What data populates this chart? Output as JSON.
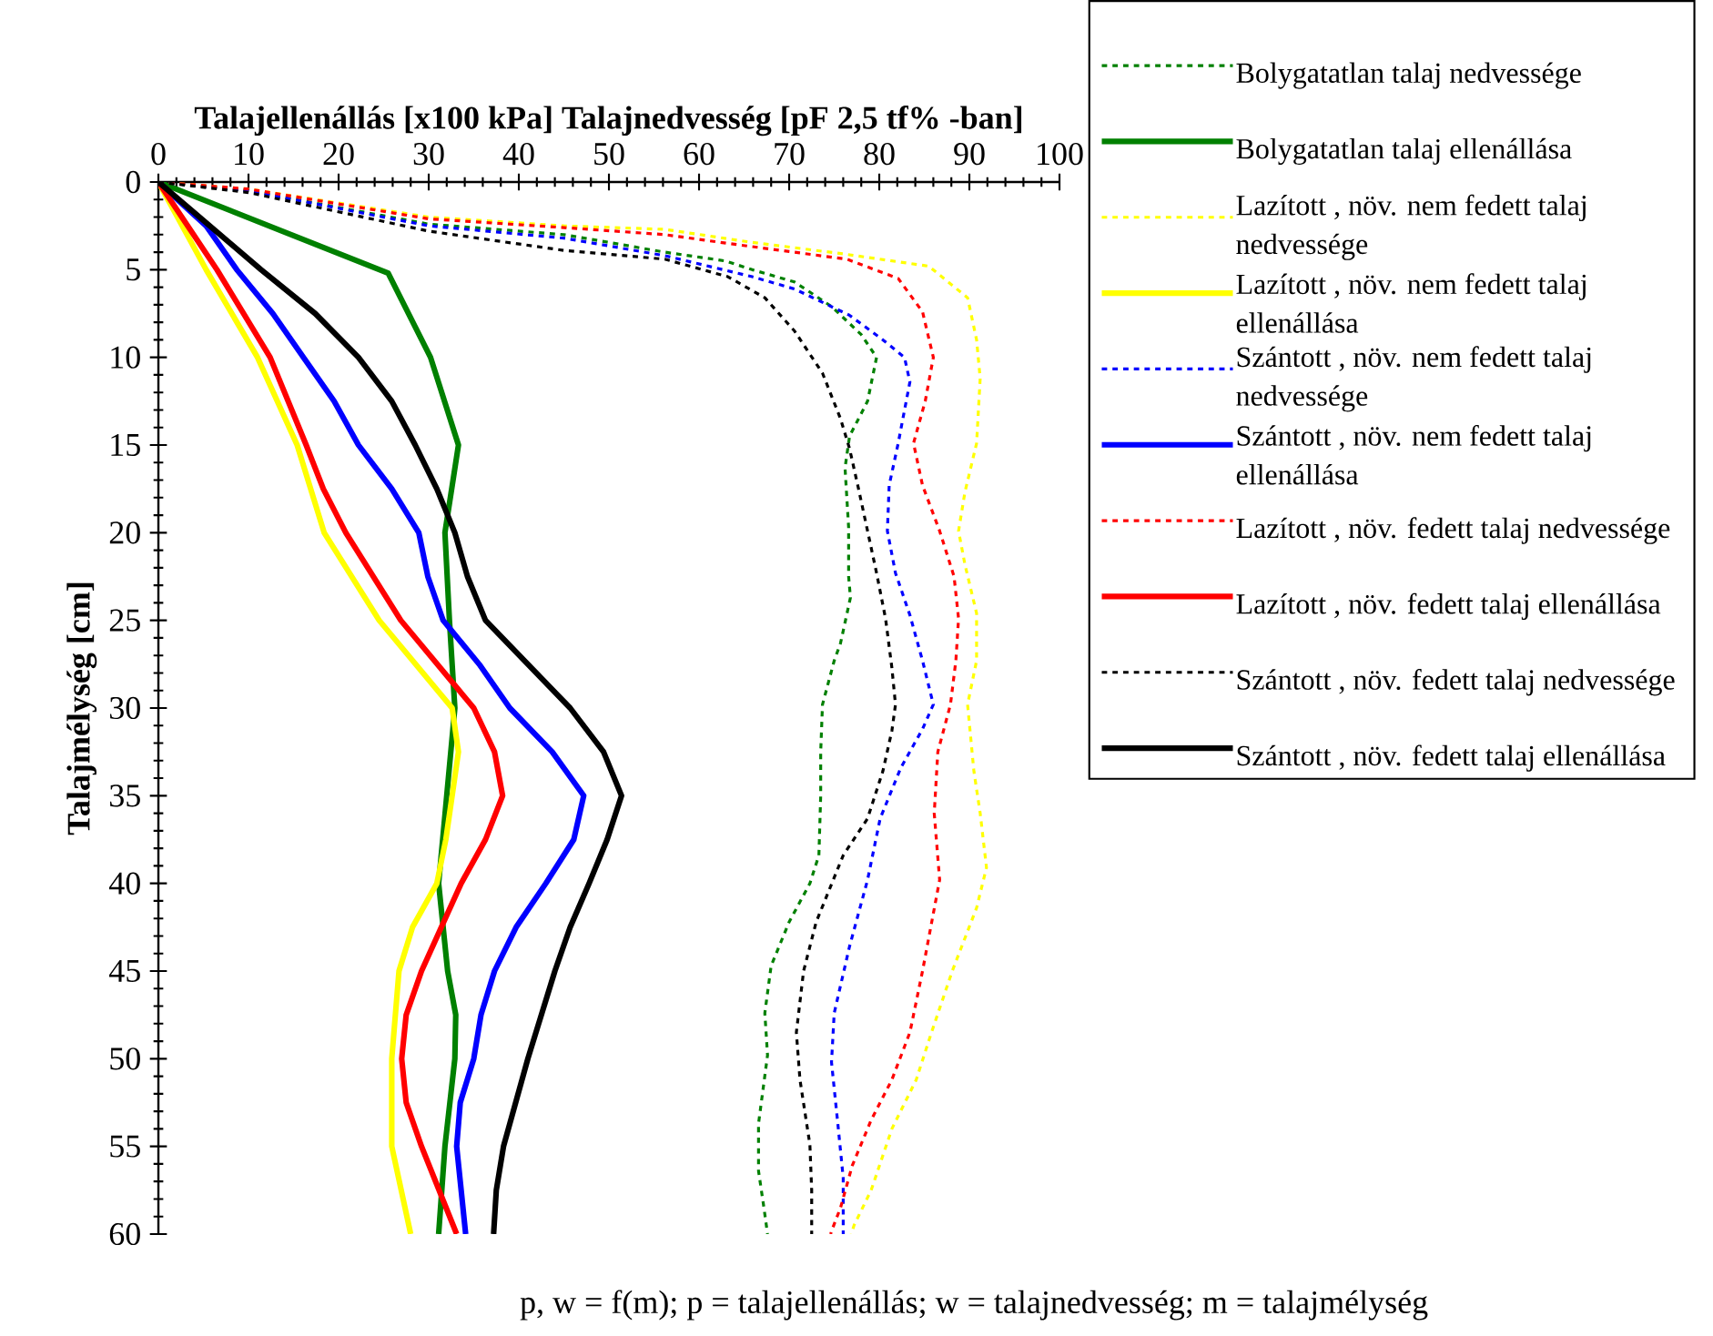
{
  "chart_data": {
    "type": "line",
    "xlabel": "Talajellenállás [x100 kPa] Talajnedvesség [pF 2,5 tf% -ban]",
    "ylabel": "Talajmélység [cm]",
    "annotations": [
      "p, w = f(m); p = talajellenállás; w = talajnedvesség; m = talajmélység"
    ],
    "xlim": [
      0,
      100
    ],
    "xticks": [
      0,
      10,
      20,
      30,
      40,
      50,
      60,
      70,
      80,
      90,
      100
    ],
    "ylim": [
      60,
      0
    ],
    "yticks": [
      0,
      5,
      10,
      15,
      20,
      25,
      30,
      35,
      40,
      45,
      50,
      55,
      60
    ],
    "legend": "right",
    "series": [
      {
        "name": "Bolygatatlan talaj nedvessége",
        "color": "#008000",
        "line_style": "dotted",
        "x": [
          0,
          10,
          30,
          45,
          56.2,
          62.9,
          65.9,
          70.6,
          74.7,
          78.0,
          79.7,
          78.7,
          76.7,
          76.2,
          76.6,
          76.6,
          76.8,
          75.7,
          75.0,
          73.7,
          73.5,
          73.5,
          73.3,
          72.3,
          70.0,
          68.0,
          67.3,
          67.6,
          66.6,
          66.6,
          67.2,
          67.6
        ],
        "values": [
          0,
          0.5,
          2.4,
          3.0,
          4.0,
          4.5,
          5.0,
          5.7,
          7.1,
          8.7,
          10.0,
          12.5,
          14.5,
          16.3,
          19.7,
          22.5,
          23.7,
          26.3,
          27.3,
          29.8,
          32.5,
          35.0,
          38.4,
          40.0,
          42.2,
          44.7,
          47.4,
          49.8,
          53.7,
          56.4,
          58.5,
          60
        ]
      },
      {
        "name": "Bolygatatlan talaj ellenállása",
        "color": "#008000",
        "line_style": "solid",
        "x": [
          0,
          25.5,
          30.2,
          33.3,
          31.8,
          32.3,
          32.9,
          32.0,
          31.1,
          32.1,
          33.0,
          32.9,
          31.8,
          31.1
        ],
        "values": [
          0,
          5.2,
          10,
          15,
          20,
          25,
          30,
          35,
          40,
          45,
          47.5,
          50,
          55,
          60
        ]
      },
      {
        "name": "Lazított , növ. nem fedett talaj nedvessége",
        "color": "#ffff00",
        "line_style": "dotted",
        "x": [
          0,
          10,
          30,
          45,
          56.2,
          65.3,
          76.0,
          85.5,
          89.8,
          90.8,
          91.2,
          90.8,
          89.5,
          88.8,
          89.5,
          90.8,
          90.8,
          89.8,
          90.5,
          91.2,
          91.9,
          90.8,
          88.1,
          85.8,
          84.1,
          81.4,
          79.1,
          77.2,
          76.9
        ],
        "values": [
          0,
          0.4,
          2.0,
          2.5,
          2.7,
          3.4,
          4.1,
          4.8,
          6.6,
          9.0,
          11.2,
          14.9,
          17.7,
          19.9,
          21.8,
          24.6,
          27.3,
          29.8,
          33.6,
          36.0,
          39.1,
          41.4,
          45.0,
          48.5,
          51.2,
          54.0,
          57.5,
          59.5,
          60
        ]
      },
      {
        "name": "Lazított , növ. nem fedett talaj ellenállása",
        "color": "#ffff00",
        "line_style": "solid",
        "x": [
          0,
          5.3,
          11.0,
          15.4,
          18.4,
          24.5,
          32.6,
          33.3,
          32.6,
          31.9,
          30.9,
          28.2,
          26.7,
          25.9,
          25.9,
          28.0
        ],
        "values": [
          0,
          5,
          10,
          15,
          20,
          25,
          30,
          32.5,
          35,
          37.5,
          40,
          42.5,
          45,
          50,
          55,
          60
        ]
      },
      {
        "name": "Szántott , növ. nem fedett talaj nedvessége",
        "color": "#0000ff",
        "line_style": "dotted",
        "x": [
          0,
          10,
          30,
          45,
          56.2,
          65.9,
          70.6,
          76.7,
          80.4,
          82.8,
          83.4,
          82.1,
          81.1,
          80.9,
          81.8,
          83.4,
          84.8,
          86.0,
          84.8,
          82.4,
          80.1,
          78.7,
          76.7,
          75.0,
          74.7,
          75.4,
          76.0,
          76.0
        ],
        "values": [
          0,
          0.5,
          2.5,
          3.2,
          4.2,
          5.4,
          6.1,
          7.6,
          9.0,
          10.0,
          11.4,
          14.9,
          17.3,
          19.9,
          22.3,
          24.7,
          27.3,
          29.8,
          31.2,
          33.4,
          36.3,
          39.8,
          43.6,
          47.4,
          50.2,
          53.7,
          56.8,
          60
        ]
      },
      {
        "name": "Szántott , növ. nem fedett talaj ellenállása",
        "color": "#0000ff",
        "line_style": "solid",
        "x": [
          0,
          5.3,
          8.7,
          12.7,
          16.1,
          19.5,
          22.2,
          25.9,
          28.9,
          29.9,
          31.6,
          35.6,
          39.0,
          43.7,
          47.2,
          46.1,
          43.0,
          39.7,
          37.3,
          35.8,
          35.0,
          33.5,
          33.1,
          34.1
        ],
        "values": [
          0,
          2.5,
          5,
          7.5,
          10,
          12.5,
          15,
          17.5,
          20,
          22.5,
          25,
          27.5,
          30,
          32.5,
          35,
          37.5,
          40,
          42.5,
          45,
          47.5,
          50,
          52.5,
          55,
          60
        ]
      },
      {
        "name": "Lazított , növ. fedett talaj nedvessége",
        "color": "#ff0000",
        "line_style": "dotted",
        "x": [
          0,
          10,
          30,
          45,
          56.2,
          63.2,
          76.4,
          82.1,
          84.8,
          86.0,
          85.1,
          83.8,
          84.8,
          86.7,
          88.3,
          88.8,
          88.5,
          87.9,
          86.5,
          86.1,
          86.7,
          84.8,
          83.4,
          81.4,
          79.1,
          77.0,
          75.7,
          74.8,
          74.6
        ],
        "values": [
          0,
          0.4,
          2.1,
          2.6,
          3.0,
          3.5,
          4.4,
          5.5,
          7.4,
          10.0,
          12.5,
          14.9,
          17.3,
          19.9,
          22.5,
          24.9,
          27.3,
          29.8,
          32.5,
          36.0,
          39.8,
          45.0,
          48.5,
          51.2,
          53.5,
          56.1,
          58.5,
          59.7,
          60
        ]
      },
      {
        "name": "Lazított , növ. fedett talaj ellenállása",
        "color": "#ff0000",
        "line_style": "solid",
        "x": [
          0,
          6.5,
          12.4,
          16.4,
          18.3,
          20.8,
          26.9,
          35.0,
          37.3,
          38.2,
          36.3,
          33.6,
          31.4,
          29.2,
          27.5,
          27.0,
          27.5,
          29.2,
          33.1
        ],
        "values": [
          0,
          5,
          10,
          15,
          17.5,
          20,
          25,
          30,
          32.5,
          35,
          37.5,
          40,
          42.5,
          45,
          47.5,
          50,
          52.5,
          55,
          60
        ]
      },
      {
        "name": "Szántott , növ. fedett talaj nedvessége",
        "color": "#000000",
        "line_style": "dotted",
        "x": [
          0,
          10,
          30,
          45,
          56.2,
          63.2,
          67.3,
          70.6,
          73.7,
          75.7,
          76.7,
          77.7,
          78.7,
          79.7,
          80.7,
          81.4,
          81.8,
          81.4,
          80.4,
          78.7,
          76.0,
          73.0,
          71.6,
          70.8,
          71.2,
          72.3,
          72.5,
          72.5
        ],
        "values": [
          0,
          0.6,
          2.8,
          3.9,
          4.4,
          5.4,
          6.6,
          8.5,
          10.9,
          13.5,
          15.2,
          17.5,
          19.9,
          22.3,
          24.9,
          27.7,
          29.8,
          31.3,
          33.6,
          36.3,
          38.4,
          42.2,
          45.0,
          48.5,
          51.2,
          54.9,
          57.5,
          60
        ]
      },
      {
        "name": "Szántott , növ. fedett talaj ellenállása",
        "color": "#000000",
        "line_style": "solid",
        "x": [
          0,
          5.7,
          11.4,
          17.4,
          22.2,
          25.9,
          28.5,
          30.9,
          32.9,
          34.3,
          36.3,
          45.7,
          49.4,
          51.4,
          49.8,
          47.8,
          45.7,
          44.0,
          41.0,
          38.3,
          37.5,
          37.2
        ],
        "values": [
          0,
          2.5,
          5,
          7.5,
          10,
          12.5,
          15,
          17.5,
          20,
          22.5,
          25,
          30,
          32.5,
          35,
          37.5,
          40,
          42.5,
          45,
          50,
          55,
          57.5,
          60
        ]
      }
    ]
  }
}
